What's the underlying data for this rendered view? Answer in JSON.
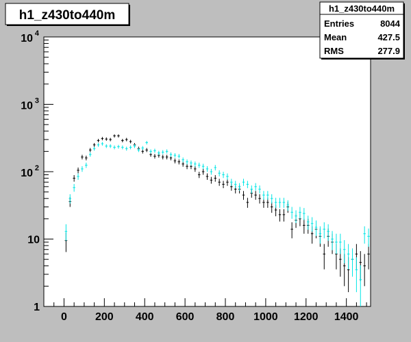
{
  "title_box": {
    "text": "h1_z430to440m"
  },
  "stats_box": {
    "title": "h1_z430to440m",
    "rows": [
      {
        "label": "Entries",
        "value": "8044"
      },
      {
        "label": "Mean",
        "value": "427.5"
      },
      {
        "label": "RMS",
        "value": "277.9"
      }
    ]
  },
  "colors": {
    "series_a": "#000000",
    "series_b": "#00e5e5",
    "pad": "#ffffff",
    "canvas": "#bebebe"
  },
  "chart_data": {
    "type": "scatter",
    "title": "h1_z430to440m",
    "xlabel": "",
    "ylabel": "",
    "xlim": [
      -100,
      1520
    ],
    "ylim": [
      1,
      10000
    ],
    "yscale": "log",
    "grid": false,
    "x_ticks": [
      0,
      200,
      400,
      600,
      800,
      1000,
      1200,
      1400
    ],
    "y_ticks": [
      {
        "value": 1,
        "base": "1",
        "exp": ""
      },
      {
        "value": 10,
        "base": "10",
        "exp": ""
      },
      {
        "value": 100,
        "base": "10",
        "exp": "2"
      },
      {
        "value": 1000,
        "base": "10",
        "exp": "3"
      },
      {
        "value": 10000,
        "base": "10",
        "exp": "4"
      }
    ],
    "bin_width": 20,
    "series": [
      {
        "color": "#000000",
        "x": [
          10,
          30,
          50,
          70,
          90,
          110,
          130,
          150,
          170,
          190,
          210,
          230,
          250,
          270,
          290,
          310,
          330,
          350,
          370,
          390,
          410,
          430,
          450,
          470,
          490,
          510,
          530,
          550,
          570,
          590,
          610,
          630,
          650,
          670,
          690,
          710,
          730,
          750,
          770,
          790,
          810,
          830,
          850,
          870,
          890,
          910,
          930,
          950,
          970,
          990,
          1010,
          1030,
          1050,
          1070,
          1090,
          1110,
          1130,
          1150,
          1170,
          1190,
          1210,
          1230,
          1250,
          1270,
          1290,
          1310,
          1330,
          1350,
          1370,
          1390,
          1410,
          1430,
          1450,
          1470,
          1490,
          1510
        ],
        "y": [
          9.5,
          36,
          80,
          105,
          165,
          160,
          210,
          250,
          290,
          310,
          305,
          300,
          340,
          340,
          290,
          300,
          280,
          250,
          220,
          200,
          210,
          180,
          170,
          175,
          165,
          165,
          160,
          145,
          140,
          130,
          120,
          120,
          110,
          90,
          100,
          85,
          75,
          80,
          70,
          65,
          70,
          60,
          55,
          55,
          45,
          35,
          48,
          45,
          40,
          35,
          35,
          30,
          27,
          23,
          23,
          30,
          14,
          19,
          20,
          16,
          16,
          12,
          14,
          11,
          6,
          11,
          9,
          6,
          5,
          4,
          3.5,
          5,
          6,
          4.5,
          4,
          6
        ]
      },
      {
        "color": "#00e5e5",
        "x": [
          10,
          30,
          50,
          70,
          90,
          110,
          130,
          150,
          170,
          190,
          210,
          230,
          250,
          270,
          290,
          310,
          330,
          350,
          370,
          390,
          410,
          430,
          450,
          470,
          490,
          510,
          530,
          550,
          570,
          590,
          610,
          630,
          650,
          670,
          690,
          710,
          730,
          750,
          770,
          790,
          810,
          830,
          850,
          870,
          890,
          910,
          930,
          950,
          970,
          990,
          1010,
          1030,
          1050,
          1070,
          1090,
          1110,
          1130,
          1150,
          1170,
          1190,
          1210,
          1230,
          1250,
          1270,
          1290,
          1310,
          1330,
          1350,
          1370,
          1390,
          1410,
          1430,
          1450,
          1470,
          1490,
          1510
        ],
        "y": [
          13,
          40,
          58,
          85,
          110,
          125,
          180,
          220,
          250,
          260,
          240,
          240,
          230,
          235,
          230,
          220,
          230,
          240,
          210,
          225,
          270,
          200,
          205,
          190,
          195,
          200,
          180,
          175,
          170,
          150,
          140,
          135,
          130,
          125,
          120,
          110,
          100,
          115,
          95,
          90,
          85,
          70,
          65,
          60,
          70,
          65,
          55,
          60,
          55,
          45,
          45,
          40,
          35,
          35,
          35,
          32,
          25,
          22,
          25,
          24,
          18,
          17,
          15,
          12,
          14,
          13,
          10,
          9,
          9,
          7,
          6,
          5,
          3.5,
          2.5,
          12,
          11
        ]
      }
    ]
  }
}
